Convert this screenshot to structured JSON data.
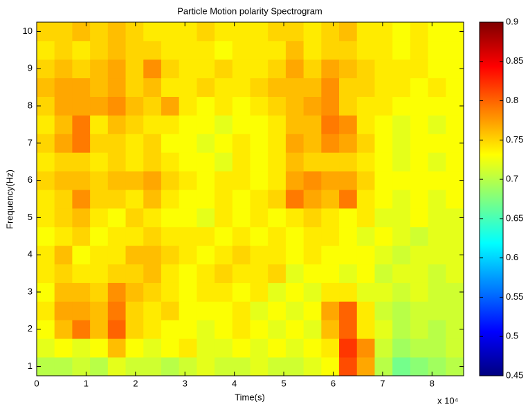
{
  "chart_data": {
    "type": "heatmap",
    "title": "Particle Motion polarity Spectrogram",
    "x_label": "Time(s)",
    "y_label": "Frequency(Hz)",
    "x_multiplier": "x 10⁴",
    "colormap": "jet",
    "x": [
      1800,
      5400,
      9000,
      12600,
      16200,
      19800,
      23400,
      27000,
      30600,
      34200,
      37800,
      41400,
      45000,
      48600,
      52200,
      55800,
      59400,
      63000,
      66600,
      70200,
      73800,
      77400,
      81000,
      84600
    ],
    "y": [
      1,
      1.5,
      2,
      2.5,
      3,
      3.5,
      4,
      4.5,
      5,
      5.5,
      6,
      6.5,
      7,
      7.5,
      8,
      8.5,
      9,
      9.5,
      10
    ],
    "z": [
      [
        0.7,
        0.7,
        0.71,
        0.7,
        0.72,
        0.71,
        0.71,
        0.7,
        0.71,
        0.72,
        0.71,
        0.71,
        0.72,
        0.71,
        0.71,
        0.72,
        0.73,
        0.81,
        0.77,
        0.7,
        0.67,
        0.68,
        0.69,
        0.7
      ],
      [
        0.72,
        0.73,
        0.72,
        0.73,
        0.76,
        0.73,
        0.72,
        0.73,
        0.74,
        0.72,
        0.72,
        0.73,
        0.72,
        0.73,
        0.72,
        0.73,
        0.74,
        0.82,
        0.78,
        0.71,
        0.69,
        0.7,
        0.7,
        0.71
      ],
      [
        0.73,
        0.76,
        0.79,
        0.76,
        0.8,
        0.75,
        0.74,
        0.73,
        0.73,
        0.72,
        0.73,
        0.74,
        0.73,
        0.72,
        0.73,
        0.72,
        0.76,
        0.8,
        0.74,
        0.72,
        0.7,
        0.71,
        0.7,
        0.71
      ],
      [
        0.74,
        0.77,
        0.77,
        0.76,
        0.79,
        0.75,
        0.74,
        0.75,
        0.73,
        0.73,
        0.73,
        0.74,
        0.72,
        0.73,
        0.72,
        0.73,
        0.77,
        0.8,
        0.74,
        0.71,
        0.7,
        0.71,
        0.71,
        0.71
      ],
      [
        0.73,
        0.76,
        0.76,
        0.75,
        0.78,
        0.76,
        0.75,
        0.74,
        0.73,
        0.74,
        0.74,
        0.73,
        0.74,
        0.72,
        0.73,
        0.72,
        0.74,
        0.74,
        0.72,
        0.72,
        0.71,
        0.72,
        0.71,
        0.71
      ],
      [
        0.74,
        0.75,
        0.74,
        0.74,
        0.75,
        0.75,
        0.76,
        0.74,
        0.73,
        0.74,
        0.75,
        0.74,
        0.74,
        0.75,
        0.72,
        0.73,
        0.73,
        0.72,
        0.73,
        0.71,
        0.72,
        0.72,
        0.71,
        0.72
      ],
      [
        0.74,
        0.76,
        0.73,
        0.74,
        0.74,
        0.76,
        0.76,
        0.75,
        0.74,
        0.73,
        0.74,
        0.75,
        0.74,
        0.74,
        0.73,
        0.74,
        0.73,
        0.73,
        0.73,
        0.72,
        0.71,
        0.72,
        0.72,
        0.72
      ],
      [
        0.73,
        0.74,
        0.75,
        0.73,
        0.74,
        0.74,
        0.75,
        0.74,
        0.74,
        0.74,
        0.73,
        0.74,
        0.73,
        0.74,
        0.73,
        0.74,
        0.74,
        0.73,
        0.72,
        0.73,
        0.72,
        0.71,
        0.72,
        0.72
      ],
      [
        0.74,
        0.75,
        0.76,
        0.74,
        0.73,
        0.75,
        0.74,
        0.73,
        0.73,
        0.72,
        0.74,
        0.73,
        0.74,
        0.73,
        0.74,
        0.75,
        0.74,
        0.73,
        0.74,
        0.72,
        0.72,
        0.73,
        0.72,
        0.72
      ],
      [
        0.74,
        0.75,
        0.78,
        0.75,
        0.75,
        0.74,
        0.76,
        0.74,
        0.73,
        0.73,
        0.74,
        0.73,
        0.74,
        0.75,
        0.79,
        0.77,
        0.76,
        0.79,
        0.74,
        0.73,
        0.72,
        0.73,
        0.72,
        0.73
      ],
      [
        0.75,
        0.76,
        0.76,
        0.75,
        0.76,
        0.76,
        0.77,
        0.75,
        0.74,
        0.73,
        0.74,
        0.74,
        0.73,
        0.74,
        0.77,
        0.78,
        0.77,
        0.77,
        0.75,
        0.73,
        0.73,
        0.73,
        0.73,
        0.73
      ],
      [
        0.74,
        0.75,
        0.75,
        0.74,
        0.75,
        0.74,
        0.75,
        0.74,
        0.73,
        0.73,
        0.72,
        0.74,
        0.73,
        0.74,
        0.76,
        0.75,
        0.75,
        0.75,
        0.74,
        0.73,
        0.72,
        0.73,
        0.72,
        0.73
      ],
      [
        0.75,
        0.77,
        0.79,
        0.75,
        0.75,
        0.74,
        0.75,
        0.73,
        0.73,
        0.72,
        0.73,
        0.74,
        0.73,
        0.74,
        0.77,
        0.76,
        0.78,
        0.77,
        0.75,
        0.73,
        0.72,
        0.73,
        0.73,
        0.73
      ],
      [
        0.74,
        0.76,
        0.79,
        0.74,
        0.76,
        0.75,
        0.74,
        0.74,
        0.73,
        0.73,
        0.72,
        0.73,
        0.73,
        0.74,
        0.76,
        0.76,
        0.79,
        0.78,
        0.74,
        0.73,
        0.72,
        0.73,
        0.72,
        0.73
      ],
      [
        0.75,
        0.77,
        0.77,
        0.77,
        0.78,
        0.76,
        0.75,
        0.77,
        0.74,
        0.73,
        0.74,
        0.73,
        0.74,
        0.75,
        0.76,
        0.77,
        0.78,
        0.75,
        0.74,
        0.74,
        0.73,
        0.73,
        0.73,
        0.73
      ],
      [
        0.76,
        0.77,
        0.77,
        0.76,
        0.77,
        0.75,
        0.76,
        0.74,
        0.74,
        0.75,
        0.74,
        0.74,
        0.75,
        0.76,
        0.76,
        0.76,
        0.78,
        0.75,
        0.75,
        0.74,
        0.74,
        0.73,
        0.74,
        0.73
      ],
      [
        0.75,
        0.76,
        0.75,
        0.76,
        0.77,
        0.75,
        0.78,
        0.75,
        0.74,
        0.74,
        0.75,
        0.74,
        0.74,
        0.75,
        0.77,
        0.75,
        0.77,
        0.76,
        0.75,
        0.74,
        0.74,
        0.74,
        0.73,
        0.73
      ],
      [
        0.74,
        0.75,
        0.74,
        0.75,
        0.76,
        0.75,
        0.75,
        0.74,
        0.74,
        0.74,
        0.73,
        0.74,
        0.74,
        0.74,
        0.76,
        0.74,
        0.75,
        0.75,
        0.74,
        0.74,
        0.73,
        0.74,
        0.73,
        0.73
      ],
      [
        0.75,
        0.75,
        0.76,
        0.75,
        0.76,
        0.75,
        0.74,
        0.74,
        0.74,
        0.75,
        0.74,
        0.74,
        0.74,
        0.75,
        0.75,
        0.74,
        0.75,
        0.76,
        0.74,
        0.74,
        0.73,
        0.74,
        0.73,
        0.73
      ]
    ],
    "xlim": [
      0,
      86400
    ],
    "xticks": [
      0,
      {
        "value": 10000,
        "label": "1"
      },
      {
        "value": 20000,
        "label": "2"
      },
      {
        "value": 30000,
        "label": "3"
      },
      {
        "value": 40000,
        "label": "4"
      },
      {
        "value": 50000,
        "label": "5"
      },
      {
        "value": 60000,
        "label": "6"
      },
      {
        "value": 70000,
        "label": "7"
      },
      {
        "value": 80000,
        "label": "8"
      }
    ],
    "ylim": [
      0.75,
      10.25
    ],
    "yticks": [
      1,
      2,
      3,
      4,
      5,
      6,
      7,
      8,
      9,
      10
    ],
    "clim": [
      0.45,
      0.9
    ],
    "cticks": [
      0.45,
      0.5,
      0.55,
      0.6,
      0.65,
      0.7,
      0.75,
      0.8,
      0.85,
      0.9
    ]
  }
}
